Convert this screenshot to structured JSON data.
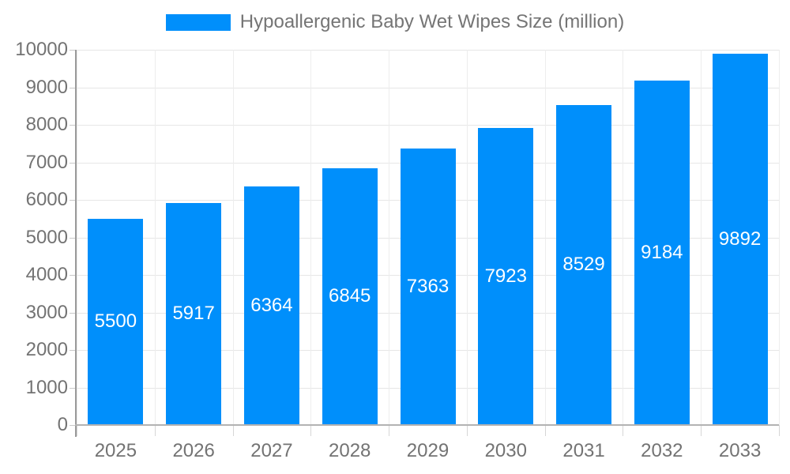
{
  "legend": {
    "position": "top",
    "items": [
      {
        "label": "Hypoallergenic Baby Wet Wipes Size (million)",
        "swatch_color": "#008FFB"
      }
    ]
  },
  "chart_data": {
    "type": "bar",
    "title": "Hypoallergenic Baby Wet Wipes Size (million)",
    "categories": [
      "2025",
      "2026",
      "2027",
      "2028",
      "2029",
      "2030",
      "2031",
      "2032",
      "2033"
    ],
    "series": [
      {
        "name": "Hypoallergenic Baby Wet Wipes Size (million)",
        "values": [
          5500,
          5917,
          6364,
          6845,
          7363,
          7923,
          8529,
          9184,
          9892
        ]
      }
    ],
    "data_labels": [
      5500,
      5917,
      6364,
      6845,
      7363,
      7923,
      8529,
      9184,
      9892
    ],
    "xlabel": "",
    "ylabel": "",
    "ylim": [
      0,
      10000
    ],
    "ytick_step": 1000,
    "ytick_labels": [
      "0",
      "1000",
      "2000",
      "3000",
      "4000",
      "5000",
      "6000",
      "7000",
      "8000",
      "9000",
      "10000"
    ],
    "grid": true,
    "legend_position": "top",
    "bar_color": "#008FFB",
    "bar_label_color": "#ffffff"
  },
  "colors": {
    "background": "#ffffff",
    "bar": "#008FFB",
    "bar_label": "#ffffff",
    "axis_label": "#737373",
    "legend_text": "#757575",
    "gridline_h": "#e6e6e6",
    "gridline_v": "#ededed",
    "y_axis_line": "#9a9a9a",
    "x_axis_line": "#b3b3b3"
  }
}
